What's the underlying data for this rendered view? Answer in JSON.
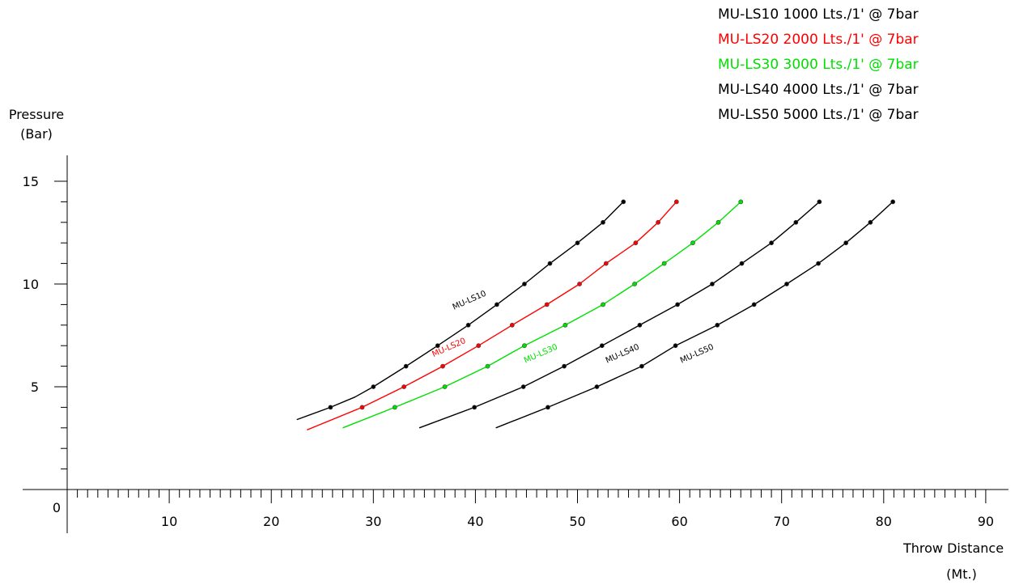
{
  "chart_data": {
    "type": "line",
    "xlabel": [
      "Throw Distance",
      "(Mt.)"
    ],
    "ylabel": [
      "Pressure",
      "(Bar)"
    ],
    "xlim": [
      0,
      90
    ],
    "ylim": [
      0,
      15
    ],
    "x_ticks": [
      10,
      20,
      30,
      40,
      50,
      60,
      70,
      80,
      90
    ],
    "y_ticks": [
      5,
      10,
      15
    ],
    "origin_label": "0",
    "legend_position": "top-right",
    "legend": [
      {
        "text": "MU-LS10 1000 Lts./1' @ 7bar",
        "color": "#000000"
      },
      {
        "text": "MU-LS20 2000 Lts./1' @ 7bar",
        "color": "#ff0000"
      },
      {
        "text": "MU-LS30 3000 Lts./1' @ 7bar",
        "color": "#00e000"
      },
      {
        "text": "MU-LS40 4000 Lts./1' @ 7bar",
        "color": "#000000"
      },
      {
        "text": "MU-LS50 5000 Lts./1' @ 7bar",
        "color": "#000000"
      }
    ],
    "series": [
      {
        "name": "MU-LS10",
        "color": "#000000",
        "label_at": {
          "x": 39.5,
          "y": 9.1
        },
        "line": [
          [
            22.5,
            3.4
          ],
          [
            25.8,
            4
          ],
          [
            28.2,
            4.5
          ],
          [
            30,
            5
          ],
          [
            33.2,
            6
          ],
          [
            36.3,
            7
          ],
          [
            39.3,
            8
          ],
          [
            42.1,
            9
          ],
          [
            44.8,
            10
          ],
          [
            47.3,
            11
          ],
          [
            50,
            12
          ],
          [
            52.5,
            13
          ],
          [
            54.5,
            14
          ]
        ],
        "points": [
          [
            25.8,
            4
          ],
          [
            30,
            5
          ],
          [
            33.2,
            6
          ],
          [
            36.3,
            7
          ],
          [
            39.3,
            8
          ],
          [
            42.1,
            9
          ],
          [
            44.8,
            10
          ],
          [
            47.3,
            11
          ],
          [
            50,
            12
          ],
          [
            52.5,
            13
          ],
          [
            54.5,
            14
          ]
        ]
      },
      {
        "name": "MU-LS20",
        "color": "#ff0000",
        "label_at": {
          "x": 37.5,
          "y": 6.8
        },
        "line": [
          [
            23.5,
            2.9
          ],
          [
            28.9,
            4
          ],
          [
            33,
            5
          ],
          [
            36.8,
            6
          ],
          [
            40.3,
            7
          ],
          [
            43.6,
            8
          ],
          [
            47,
            9
          ],
          [
            50.2,
            10
          ],
          [
            52.8,
            11
          ],
          [
            55.7,
            12
          ],
          [
            57.9,
            13
          ],
          [
            59.7,
            14
          ]
        ],
        "points": [
          [
            28.9,
            4
          ],
          [
            33,
            5
          ],
          [
            36.8,
            6
          ],
          [
            40.3,
            7
          ],
          [
            43.6,
            8
          ],
          [
            47,
            9
          ],
          [
            50.2,
            10
          ],
          [
            52.8,
            11
          ],
          [
            55.7,
            12
          ],
          [
            57.9,
            13
          ],
          [
            59.7,
            14
          ]
        ]
      },
      {
        "name": "MU-LS30",
        "color": "#00e000",
        "label_at": {
          "x": 46.5,
          "y": 6.5
        },
        "line": [
          [
            27,
            3
          ],
          [
            32.1,
            4
          ],
          [
            37,
            5
          ],
          [
            41.2,
            6
          ],
          [
            44.8,
            7
          ],
          [
            48.8,
            8
          ],
          [
            52.5,
            9
          ],
          [
            55.6,
            10
          ],
          [
            58.5,
            11
          ],
          [
            61.3,
            12
          ],
          [
            63.8,
            13
          ],
          [
            66,
            14
          ]
        ],
        "points": [
          [
            32.1,
            4
          ],
          [
            37,
            5
          ],
          [
            41.2,
            6
          ],
          [
            44.8,
            7
          ],
          [
            48.8,
            8
          ],
          [
            52.5,
            9
          ],
          [
            55.6,
            10
          ],
          [
            58.5,
            11
          ],
          [
            61.3,
            12
          ],
          [
            63.8,
            13
          ],
          [
            66,
            14
          ]
        ]
      },
      {
        "name": "MU-LS40",
        "color": "#000000",
        "label_at": {
          "x": 54.5,
          "y": 6.5
        },
        "line": [
          [
            34.5,
            3
          ],
          [
            39.9,
            4
          ],
          [
            44.7,
            5
          ],
          [
            48.7,
            6
          ],
          [
            52.4,
            7
          ],
          [
            56.1,
            8
          ],
          [
            59.8,
            9
          ],
          [
            63.2,
            10
          ],
          [
            66.1,
            11
          ],
          [
            69,
            12
          ],
          [
            71.4,
            13
          ],
          [
            73.7,
            14
          ]
        ],
        "points": [
          [
            39.9,
            4
          ],
          [
            44.7,
            5
          ],
          [
            48.7,
            6
          ],
          [
            52.4,
            7
          ],
          [
            56.1,
            8
          ],
          [
            59.8,
            9
          ],
          [
            63.2,
            10
          ],
          [
            66.1,
            11
          ],
          [
            69,
            12
          ],
          [
            71.4,
            13
          ],
          [
            73.7,
            14
          ]
        ]
      },
      {
        "name": "MU-LS50",
        "color": "#000000",
        "label_at": {
          "x": 61.8,
          "y": 6.5
        },
        "line": [
          [
            42,
            3
          ],
          [
            47.1,
            4
          ],
          [
            51.9,
            5
          ],
          [
            56.3,
            6
          ],
          [
            59.6,
            7
          ],
          [
            63.7,
            8
          ],
          [
            67.3,
            9
          ],
          [
            70.5,
            10
          ],
          [
            73.6,
            11
          ],
          [
            76.3,
            12
          ],
          [
            78.7,
            13
          ],
          [
            80.9,
            14
          ]
        ],
        "points": [
          [
            47.1,
            4
          ],
          [
            51.9,
            5
          ],
          [
            56.3,
            6
          ],
          [
            59.6,
            7
          ],
          [
            63.7,
            8
          ],
          [
            67.3,
            9
          ],
          [
            70.5,
            10
          ],
          [
            73.6,
            11
          ],
          [
            76.3,
            12
          ],
          [
            78.7,
            13
          ],
          [
            80.9,
            14
          ]
        ]
      }
    ]
  }
}
